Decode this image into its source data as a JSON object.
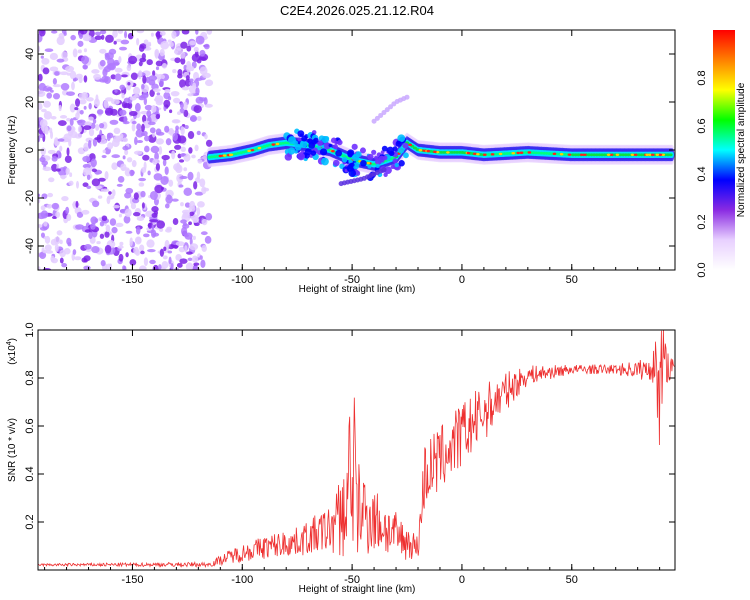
{
  "chart_data": [
    {
      "type": "heatmap",
      "title": "C2E4.2026.025.21.12.R04",
      "xlabel": "Height of straight line (km)",
      "ylabel": "Frequency (Hz)",
      "xlim": [
        -193,
        97
      ],
      "ylim": [
        -50,
        50
      ],
      "xticks": [
        -150,
        -100,
        -50,
        0,
        50
      ],
      "yticks": [
        -40,
        -20,
        0,
        20,
        40
      ],
      "colorbar": {
        "label": "Normalized spectral amplitude",
        "range": [
          0.0,
          1.0
        ],
        "ticks": [
          0.0,
          0.2,
          0.4,
          0.6,
          0.8
        ],
        "tick_labels": [
          "0.0",
          "0.2",
          "0.4",
          "0.6",
          "0.8"
        ],
        "colormap": [
          "#ffffff",
          "#e8d0ff",
          "#8a2be2",
          "#0000ff",
          "#00ffff",
          "#00ff00",
          "#ffff00",
          "#ff8000",
          "#ff0000"
        ]
      },
      "features": [
        {
          "name": "noise region",
          "x_range": [
            -193,
            -115
          ],
          "freq_range": [
            -50,
            50
          ],
          "amplitude": 0.1
        },
        {
          "name": "ridge",
          "points": [
            [
              -115,
              -3
            ],
            [
              -105,
              -2
            ],
            [
              -95,
              0
            ],
            [
              -88,
              2
            ],
            [
              -80,
              3
            ],
            [
              -70,
              2
            ],
            [
              -60,
              0
            ],
            [
              -50,
              -4
            ],
            [
              -40,
              -6
            ],
            [
              -30,
              -3
            ],
            [
              -25,
              3
            ],
            [
              -20,
              0
            ],
            [
              -10,
              -1
            ],
            [
              0,
              -1
            ],
            [
              10,
              -2
            ],
            [
              30,
              -1
            ],
            [
              50,
              -2
            ],
            [
              70,
              -2
            ],
            [
              95,
              -2
            ]
          ]
        },
        {
          "name": "weak lower branch",
          "points": [
            [
              -55,
              -14
            ],
            [
              -45,
              -12
            ],
            [
              -35,
              -8
            ]
          ]
        },
        {
          "name": "weak upper streak",
          "points": [
            [
              -40,
              12
            ],
            [
              -30,
              20
            ],
            [
              -25,
              22
            ]
          ]
        }
      ]
    },
    {
      "type": "line",
      "title": "",
      "xlabel": "Height of straight line (km)",
      "ylabel": "SNR (10 * v/v)",
      "y_scale_label": "(x10",
      "y_scale_exp": "4",
      "y_scale_close": ")",
      "xlim": [
        -193,
        97
      ],
      "ylim": [
        0,
        1.0
      ],
      "xticks": [
        -150,
        -100,
        -50,
        0,
        50
      ],
      "yticks": [
        0.2,
        0.4,
        0.6,
        0.8,
        1.0
      ],
      "ytick_labels": [
        "0.2",
        "0.4",
        "0.6",
        "0.8",
        "1.0"
      ],
      "color": "#ee3030",
      "envelope": [
        {
          "x": -193,
          "base": 0.02,
          "noise": 0.005
        },
        {
          "x": -115,
          "base": 0.02,
          "noise": 0.01
        },
        {
          "x": -105,
          "base": 0.05,
          "noise": 0.03
        },
        {
          "x": -90,
          "base": 0.08,
          "noise": 0.05
        },
        {
          "x": -75,
          "base": 0.1,
          "noise": 0.06
        },
        {
          "x": -60,
          "base": 0.14,
          "noise": 0.1
        },
        {
          "x": -50,
          "base": 0.2,
          "noise": 0.25
        },
        {
          "x": -40,
          "base": 0.17,
          "noise": 0.14
        },
        {
          "x": -30,
          "base": 0.11,
          "noise": 0.1
        },
        {
          "x": -20,
          "base": 0.08,
          "noise": 0.05
        },
        {
          "x": -17,
          "base": 0.35,
          "noise": 0.15
        },
        {
          "x": -10,
          "base": 0.42,
          "noise": 0.14
        },
        {
          "x": 0,
          "base": 0.52,
          "noise": 0.14
        },
        {
          "x": 10,
          "base": 0.62,
          "noise": 0.12
        },
        {
          "x": 20,
          "base": 0.72,
          "noise": 0.08
        },
        {
          "x": 30,
          "base": 0.8,
          "noise": 0.04
        },
        {
          "x": 50,
          "base": 0.83,
          "noise": 0.02
        },
        {
          "x": 70,
          "base": 0.83,
          "noise": 0.02
        },
        {
          "x": 85,
          "base": 0.82,
          "noise": 0.05
        },
        {
          "x": 90,
          "base": 0.85,
          "noise": 0.12
        },
        {
          "x": 97,
          "base": 0.82,
          "noise": 0.03
        }
      ]
    }
  ]
}
